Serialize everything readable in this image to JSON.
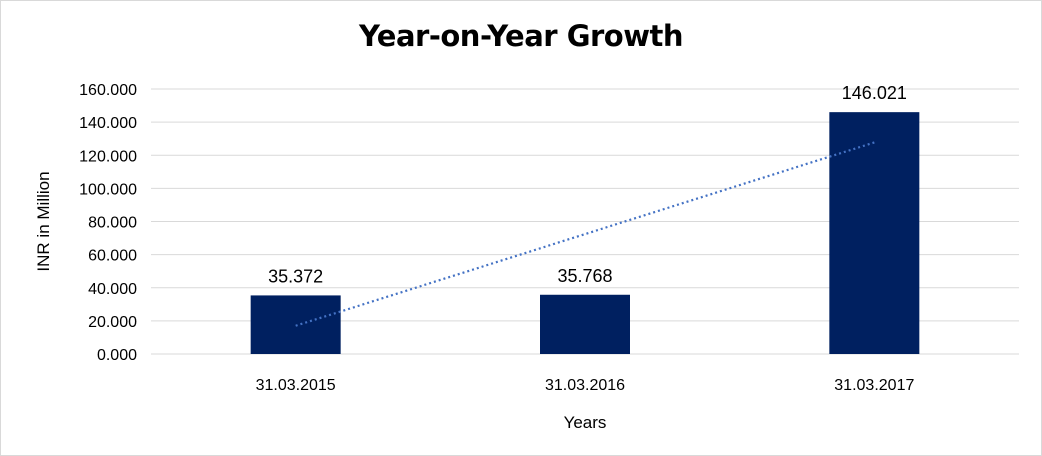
{
  "chart_data": {
    "type": "bar",
    "title": "Year-on-Year Growth",
    "xlabel": "Years",
    "ylabel": "INR in Million",
    "categories": [
      "31.03.2015",
      "31.03.2016",
      "31.03.2017"
    ],
    "values": [
      35.372,
      35.768,
      146.021
    ],
    "data_labels": [
      "35.372",
      "35.768",
      "146.021"
    ],
    "ylim": [
      0,
      160
    ],
    "yticks": [
      0,
      20,
      40,
      60,
      80,
      100,
      120,
      140,
      160
    ],
    "ytick_labels": [
      "0.000",
      "20.000",
      "40.000",
      "60.000",
      "80.000",
      "100.000",
      "120.000",
      "140.000",
      "160.000"
    ],
    "grid": true,
    "legend": "none",
    "trendline": {
      "type": "linear",
      "style": "dotted"
    },
    "colors": {
      "bar": "#002060",
      "trendline": "#4472c4",
      "grid": "#d9d9d9"
    }
  }
}
